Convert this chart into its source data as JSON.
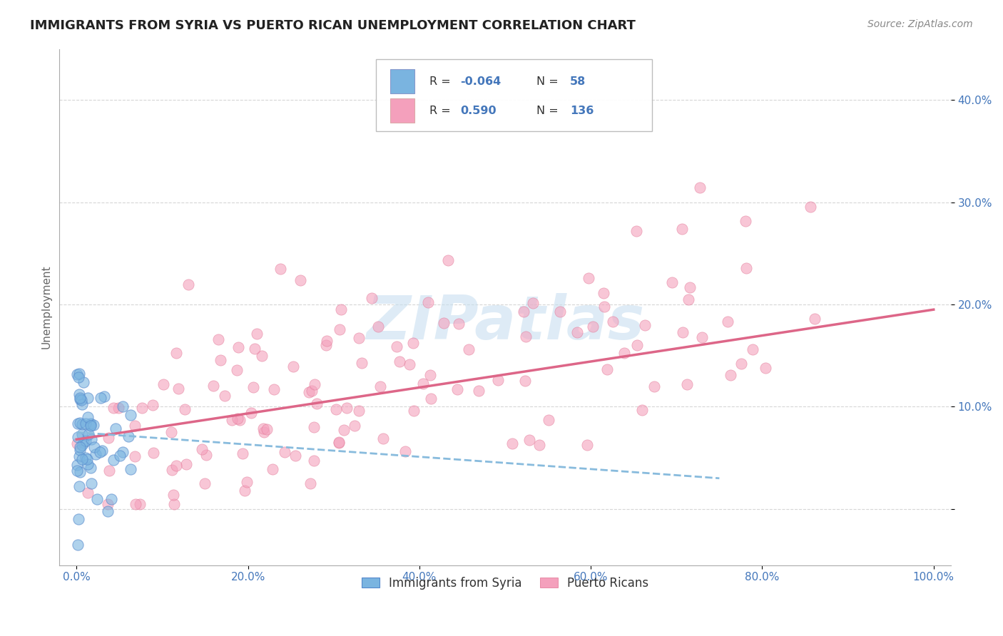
{
  "title": "IMMIGRANTS FROM SYRIA VS PUERTO RICAN UNEMPLOYMENT CORRELATION CHART",
  "source": "Source: ZipAtlas.com",
  "ylabel": "Unemployment",
  "xlim": [
    -0.02,
    1.02
  ],
  "ylim": [
    -0.055,
    0.45
  ],
  "x_ticks": [
    0.0,
    0.2,
    0.4,
    0.6,
    0.8,
    1.0
  ],
  "x_tick_labels": [
    "0.0%",
    "20.0%",
    "40.0%",
    "60.0%",
    "80.0%",
    "100.0%"
  ],
  "y_ticks": [
    0.0,
    0.1,
    0.2,
    0.3,
    0.4
  ],
  "y_tick_labels": [
    "",
    "10.0%",
    "20.0%",
    "30.0%",
    "40.0%"
  ],
  "blue_R": -0.064,
  "blue_N": 58,
  "pink_R": 0.59,
  "pink_N": 136,
  "blue_color": "#7ab4e0",
  "pink_color": "#f4a0bc",
  "blue_edge_color": "#5588cc",
  "pink_edge_color": "#e07090",
  "blue_line_color": "#88bbdd",
  "pink_line_color": "#dd6688",
  "watermark": "ZIPatlas",
  "watermark_color": "#c8dff0",
  "background_color": "#ffffff",
  "grid_color": "#cccccc",
  "title_color": "#222222",
  "tick_color": "#4477bb",
  "seed": 42,
  "pink_trend_x0": 0.0,
  "pink_trend_x1": 1.0,
  "pink_trend_y0": 0.068,
  "pink_trend_y1": 0.195,
  "blue_trend_x0": 0.0,
  "blue_trend_x1": 0.75,
  "blue_trend_y0": 0.075,
  "blue_trend_y1": 0.03
}
